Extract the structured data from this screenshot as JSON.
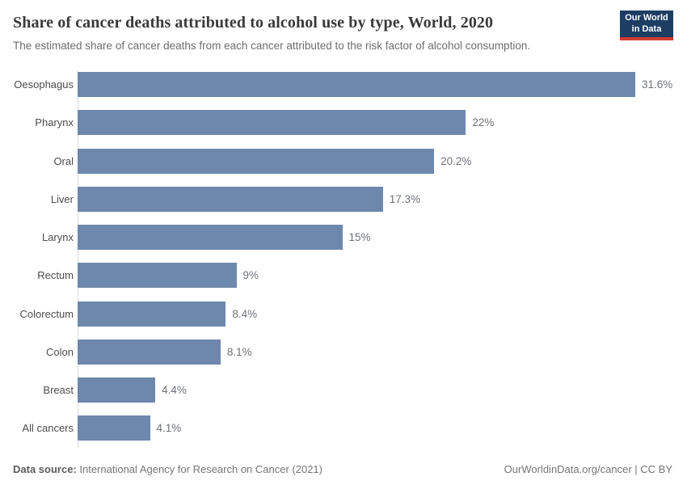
{
  "header": {
    "title": "Share of cancer deaths attributed to alcohol use by type, World, 2020",
    "subtitle": "The estimated share of cancer deaths from each cancer attributed to the risk factor of alcohol consumption.",
    "logo": {
      "line1": "Our World",
      "line2": "in Data",
      "bg_color": "#1d3d63",
      "accent_color": "#cf3c33"
    }
  },
  "chart_data": {
    "type": "bar",
    "orientation": "horizontal",
    "title": "Share of cancer deaths attributed to alcohol use by type, World, 2020",
    "categories": [
      "Oesophagus",
      "Pharynx",
      "Oral",
      "Liver",
      "Larynx",
      "Rectum",
      "Colorectum",
      "Colon",
      "Breast",
      "All cancers"
    ],
    "values": [
      31.6,
      22,
      20.2,
      17.3,
      15,
      9,
      8.4,
      8.1,
      4.4,
      4.1
    ],
    "value_labels": [
      "31.6%",
      "22%",
      "20.2%",
      "17.3%",
      "15%",
      "9%",
      "8.4%",
      "8.1%",
      "4.4%",
      "4.1%"
    ],
    "unit": "%",
    "xlim": [
      0,
      31.6
    ],
    "grid": false,
    "legend": "none",
    "bar_color": "#6e88ad"
  },
  "footer": {
    "source_label": "Data source:",
    "source_text": "International Agency for Research on Cancer (2021)",
    "attribution": "OurWorldinData.org/cancer | CC BY"
  }
}
